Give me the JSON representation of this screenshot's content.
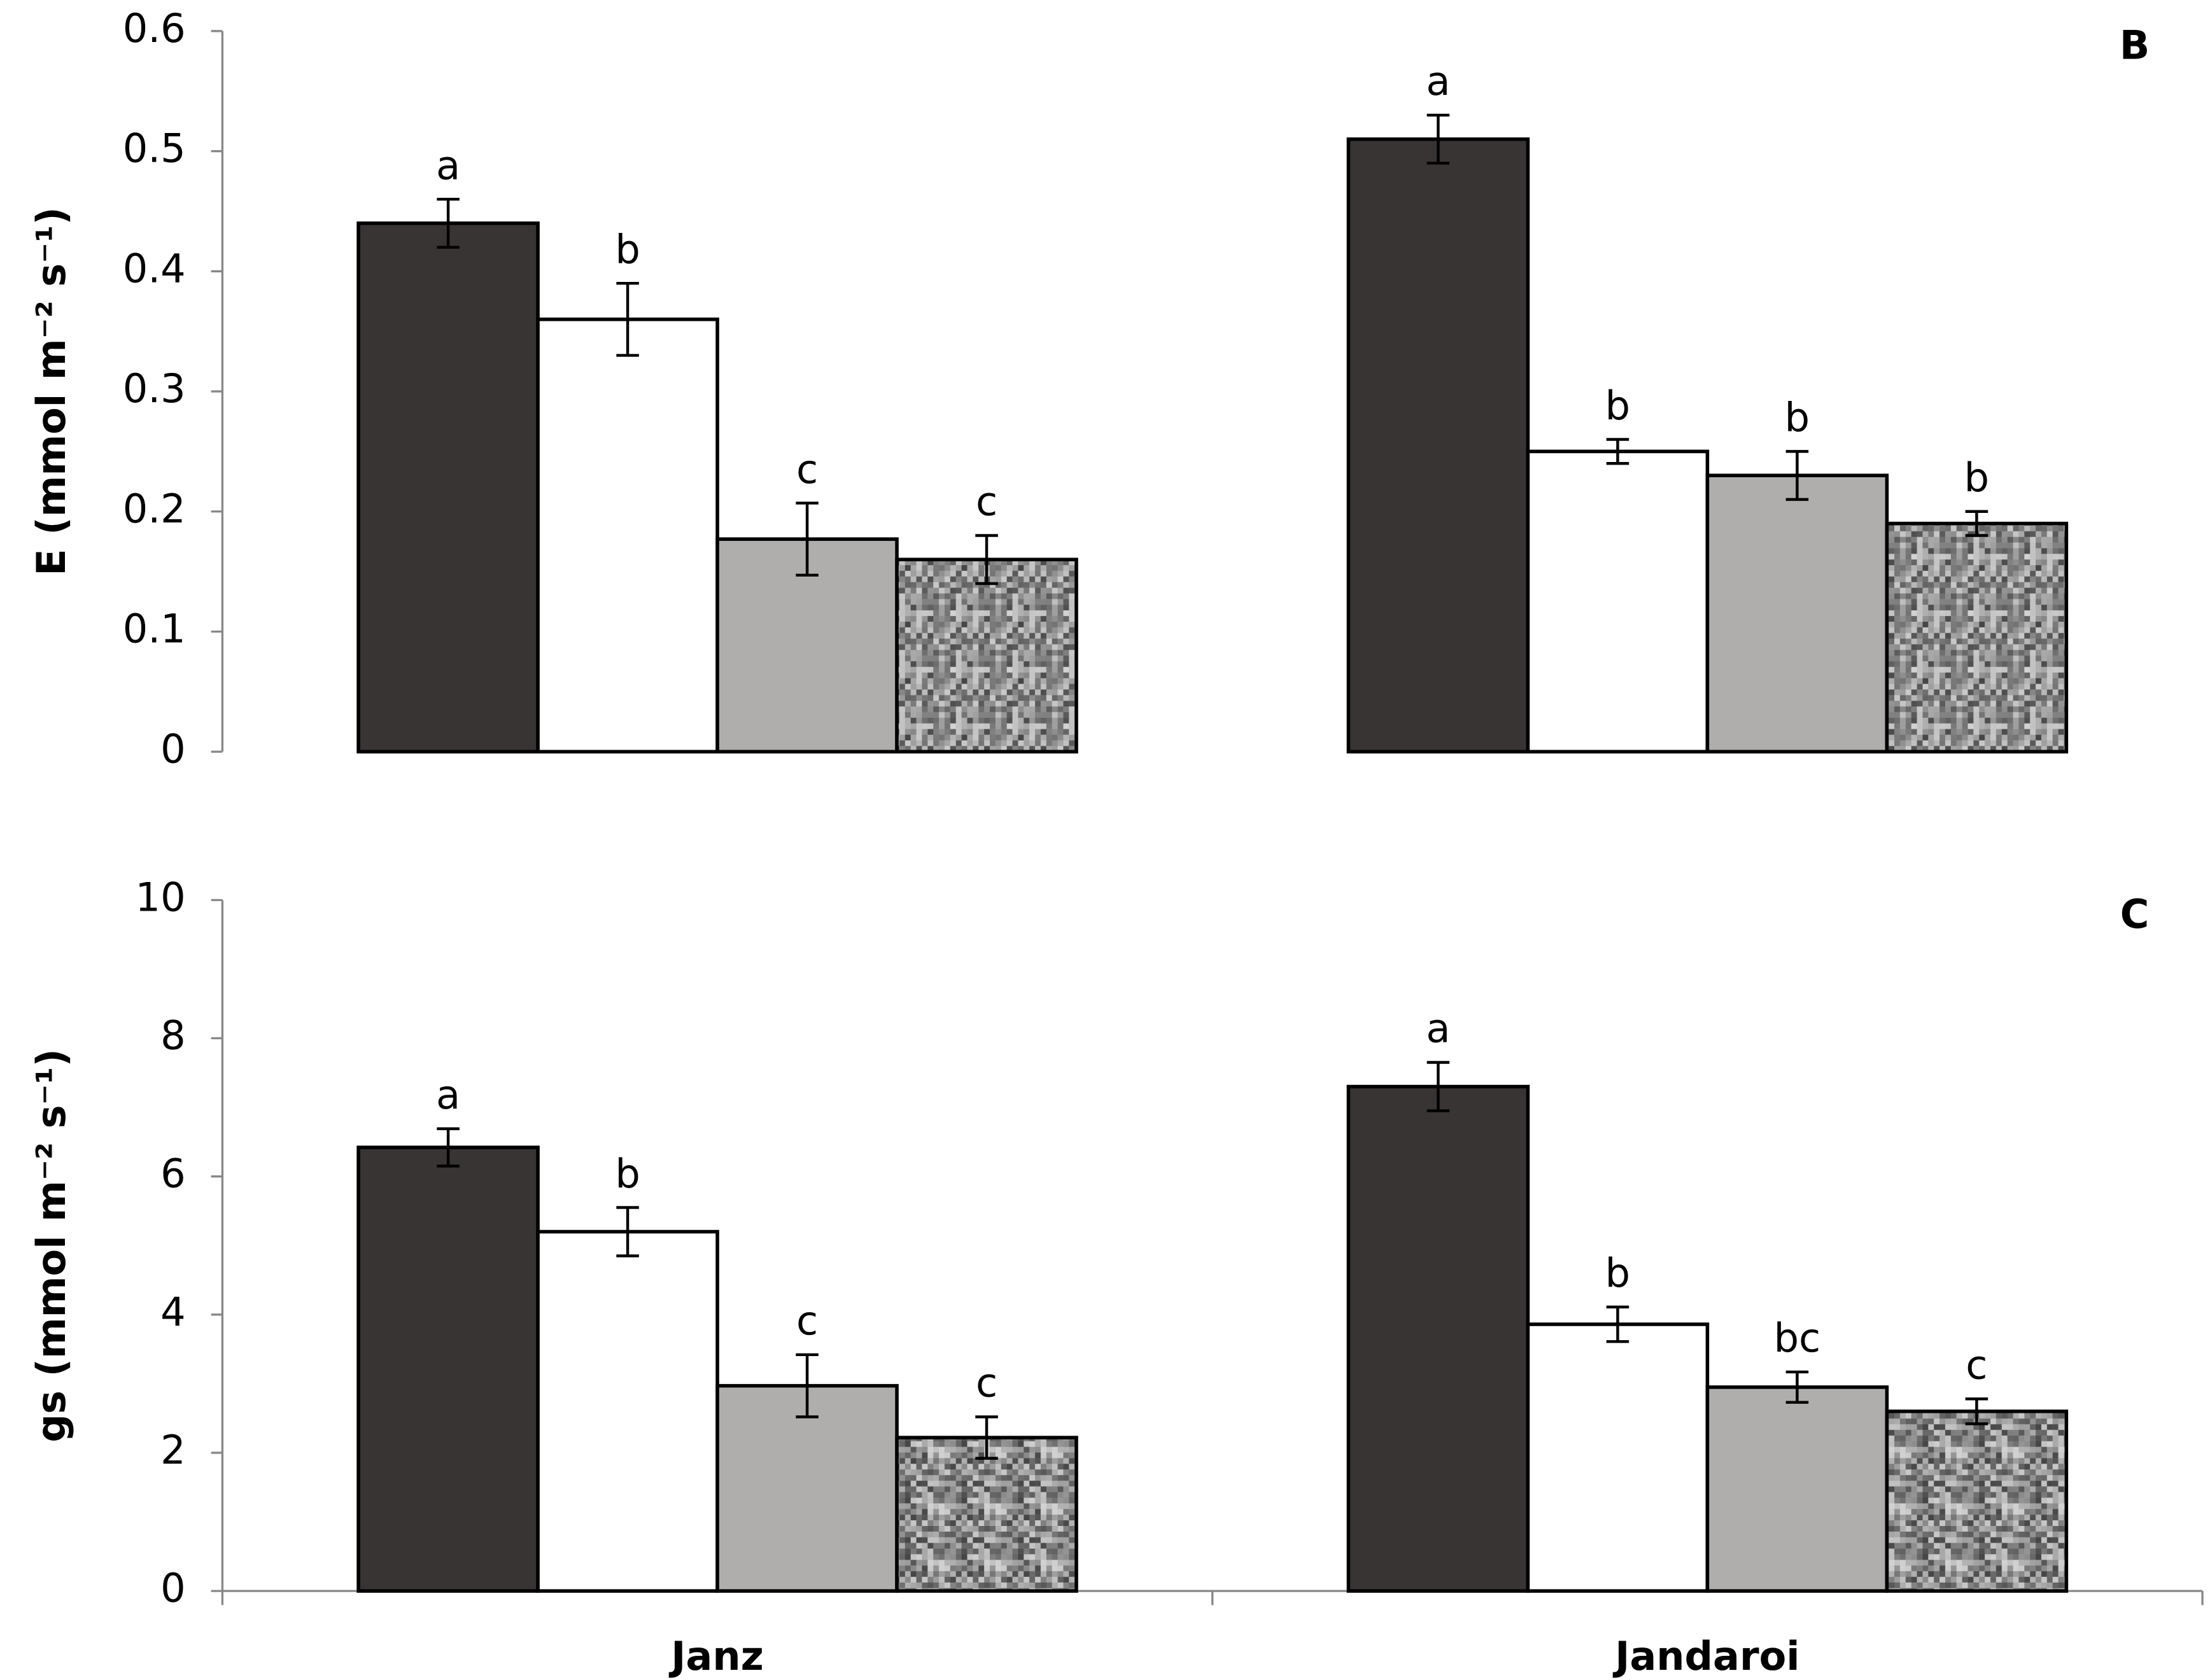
{
  "chart_data": [
    {
      "type": "bar",
      "panel_label": "B",
      "y_label": "E (mmol m⁻² s⁻¹)",
      "categories": [
        null,
        null
      ],
      "x_axis_line": false,
      "ylim": [
        0,
        0.6
      ],
      "yticks": [
        {
          "value": 0,
          "label": "0"
        },
        0.1,
        0.2,
        0.3,
        0.4,
        0.5,
        0.6
      ],
      "series": [
        {
          "color": "#383434",
          "values": [
            0.44,
            0.51
          ],
          "errors": [
            0.02,
            0.02
          ],
          "letters": [
            "a",
            "a"
          ]
        },
        {
          "color": "#ffffff",
          "values": [
            0.36,
            0.25
          ],
          "errors": [
            0.03,
            0.01
          ],
          "letters": [
            "b",
            "b"
          ]
        },
        {
          "color": "#b0aeac",
          "values": [
            0.177,
            0.23
          ],
          "errors": [
            0.03,
            0.02
          ],
          "letters": [
            "c",
            "b"
          ]
        },
        {
          "color": "#9c9c9c",
          "pattern": "speckle",
          "values": [
            0.16,
            0.19
          ],
          "errors": [
            0.02,
            0.01
          ],
          "letters": [
            "c",
            "b"
          ]
        }
      ]
    },
    {
      "type": "bar",
      "panel_label": "C",
      "y_label": "gs (mmol m⁻² s⁻¹)",
      "categories": [
        "Janz",
        "Jandaroi"
      ],
      "x_axis_line": true,
      "ylim": [
        0,
        10
      ],
      "yticks": [
        0,
        2,
        4,
        6,
        8,
        10
      ],
      "series": [
        {
          "color": "#383434",
          "values": [
            6.42,
            7.3
          ],
          "errors": [
            0.27,
            0.35
          ],
          "letters": [
            "a",
            "a"
          ]
        },
        {
          "color": "#ffffff",
          "values": [
            5.2,
            3.86
          ],
          "errors": [
            0.35,
            0.25
          ],
          "letters": [
            "b",
            "b"
          ]
        },
        {
          "color": "#b0aeac",
          "values": [
            2.97,
            2.95
          ],
          "errors": [
            0.45,
            0.22
          ],
          "letters": [
            "c",
            "bc"
          ]
        },
        {
          "color": "#9c9c9c",
          "pattern": "speckle",
          "values": [
            2.22,
            2.6
          ],
          "errors": [
            0.3,
            0.18
          ],
          "letters": [
            "c",
            "c"
          ]
        }
      ]
    }
  ]
}
